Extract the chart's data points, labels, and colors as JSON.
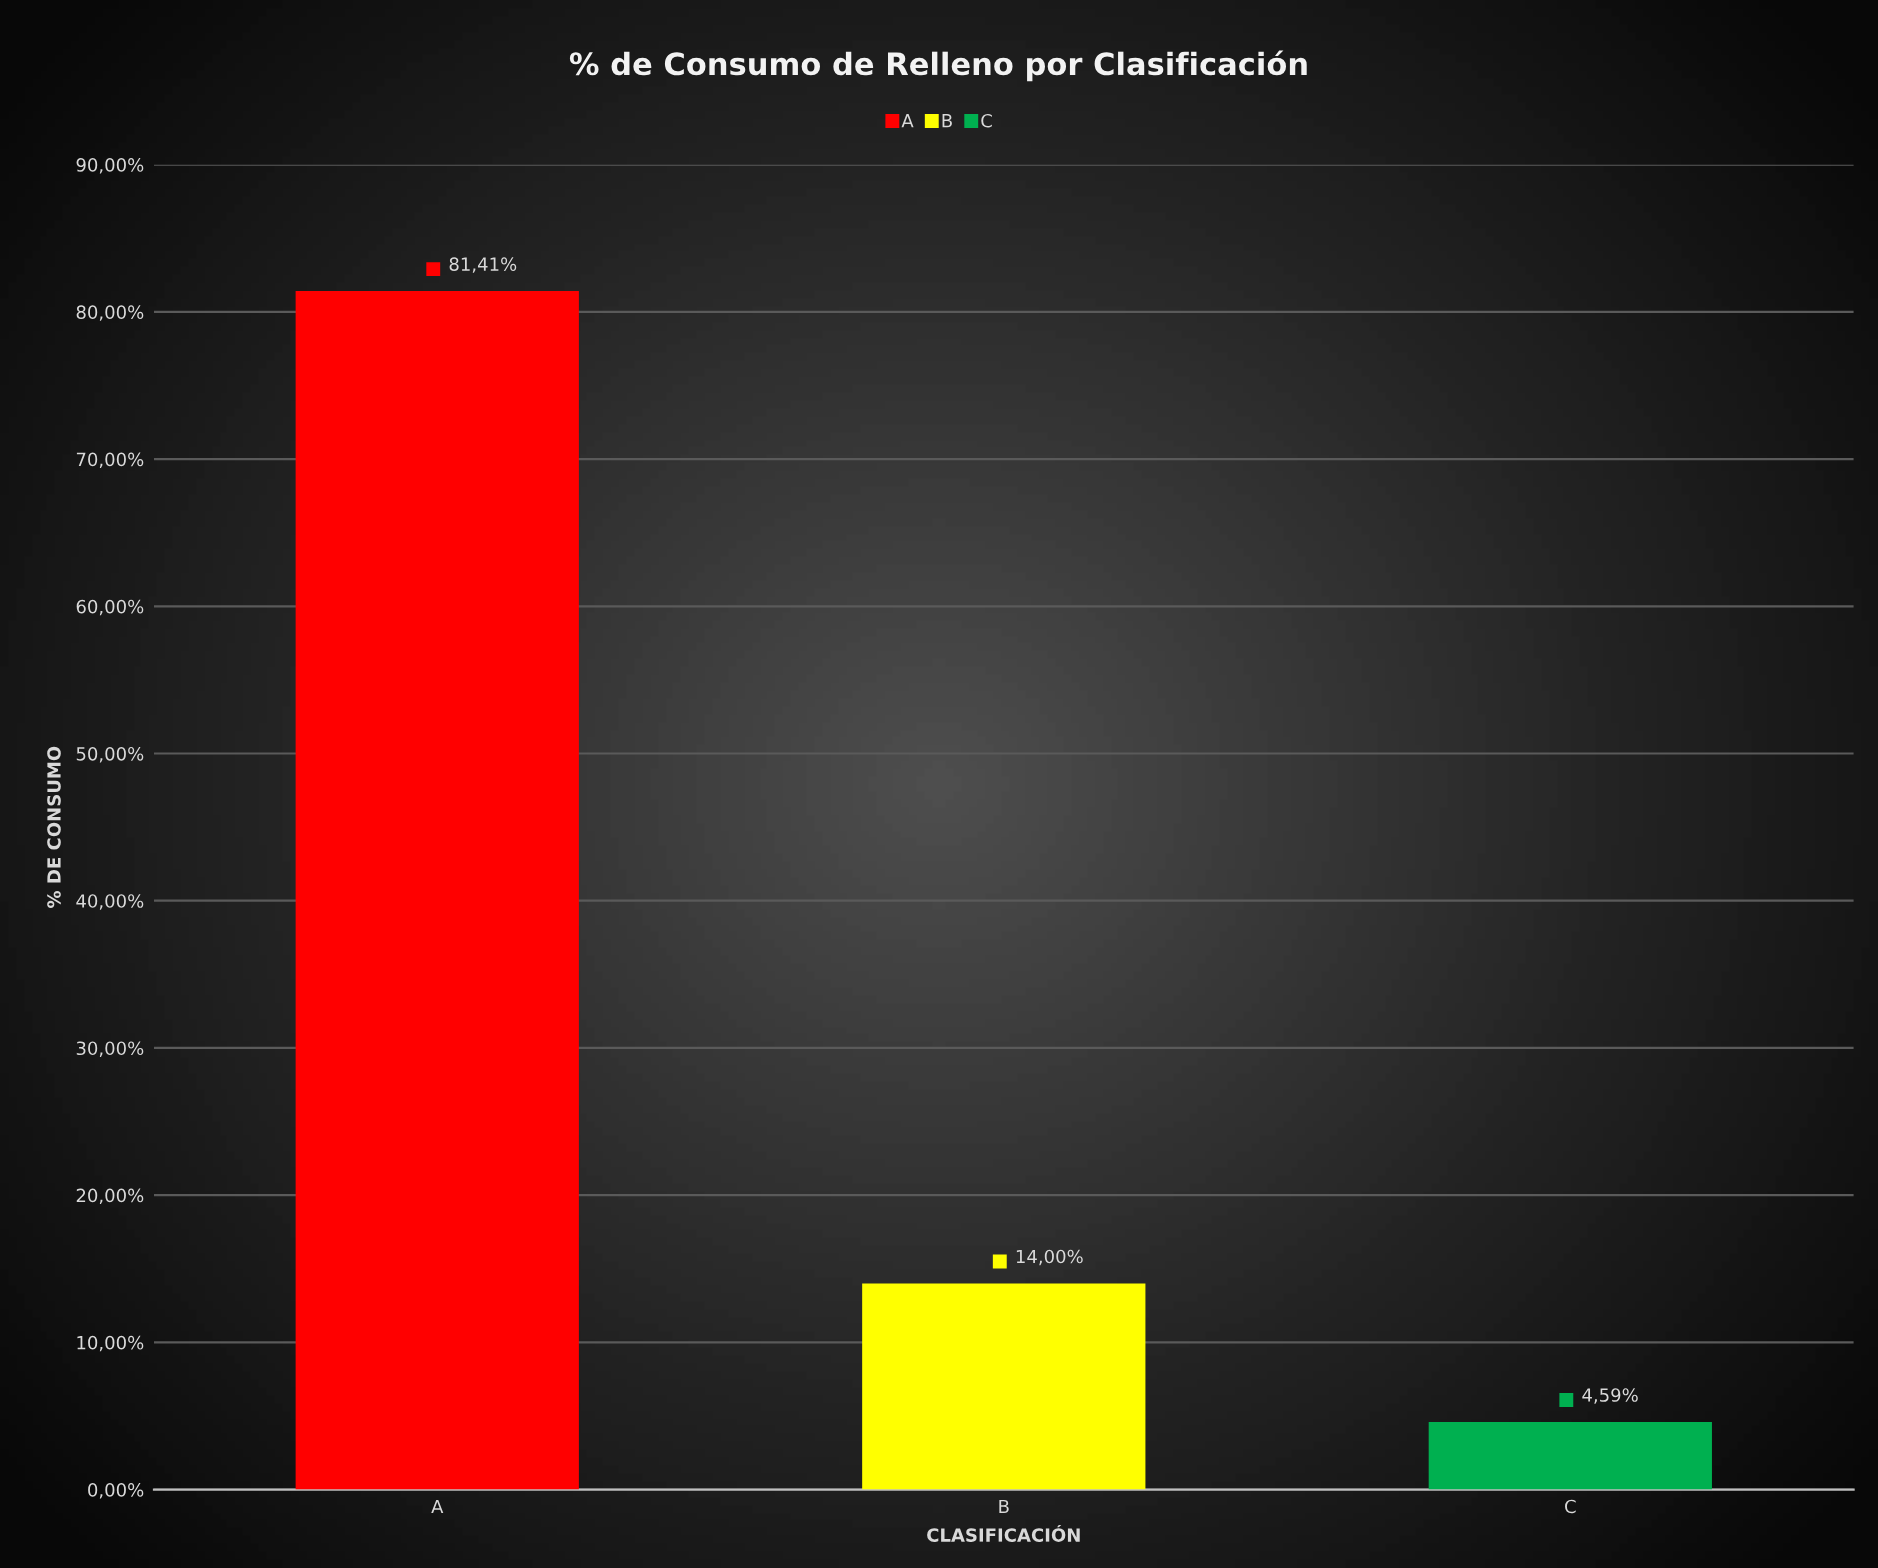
{
  "chart_data": {
    "type": "bar",
    "title": "% de Consumo de Relleno por Clasificación",
    "xlabel": "CLASIFICACIÓN",
    "ylabel": "% DE CONSUMO",
    "categories": [
      "A",
      "B",
      "C"
    ],
    "series": [
      {
        "name": "A",
        "color": "#ff0000",
        "values": [
          81.41,
          null,
          null
        ],
        "value_labels": [
          "81,41%",
          null,
          null
        ]
      },
      {
        "name": "B",
        "color": "#ffff00",
        "values": [
          null,
          14.0,
          null
        ],
        "value_labels": [
          null,
          "14,00%",
          null
        ]
      },
      {
        "name": "C",
        "color": "#00b050",
        "values": [
          null,
          null,
          4.59
        ],
        "value_labels": [
          null,
          null,
          "4,59%"
        ]
      }
    ],
    "ylim": [
      0,
      90
    ],
    "yticks": [
      {
        "value": 0,
        "label": "0,00%"
      },
      {
        "value": 10,
        "label": "10,00%"
      },
      {
        "value": 20,
        "label": "20,00%"
      },
      {
        "value": 30,
        "label": "30,00%"
      },
      {
        "value": 40,
        "label": "40,00%"
      },
      {
        "value": 50,
        "label": "50,00%"
      },
      {
        "value": 60,
        "label": "60,00%"
      },
      {
        "value": 70,
        "label": "70,00%"
      },
      {
        "value": 80,
        "label": "80,00%"
      },
      {
        "value": 90,
        "label": "90,00%"
      }
    ],
    "grid": "y",
    "legend": "top"
  }
}
